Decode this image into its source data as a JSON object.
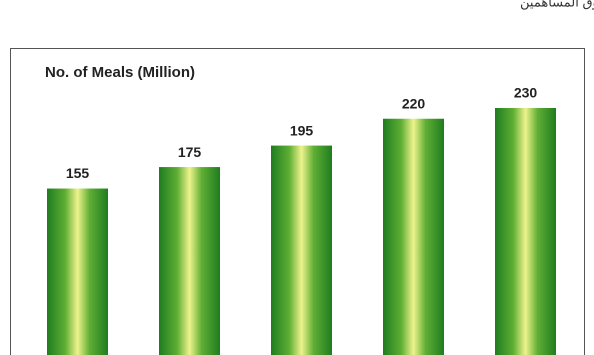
{
  "header": "حقوق المساهمين",
  "chart_data": {
    "type": "bar",
    "title": "No. of Meals (Million)",
    "categories": [
      null,
      null,
      null,
      null,
      null
    ],
    "values": [
      155,
      175,
      195,
      220,
      230
    ],
    "color": "#1f7d1f"
  }
}
